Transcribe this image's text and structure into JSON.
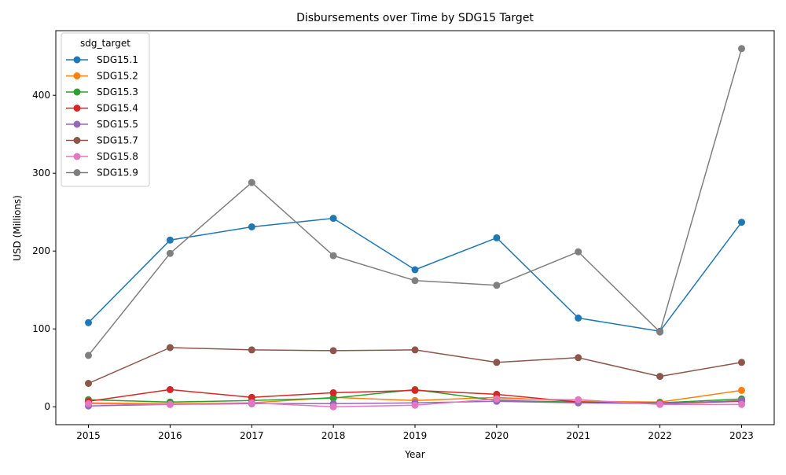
{
  "chart_data": {
    "type": "line",
    "title": "Disbursements over Time by SDG15 Target",
    "xlabel": "Year",
    "ylabel": "USD (Millions)",
    "x": [
      2015,
      2016,
      2017,
      2018,
      2019,
      2020,
      2021,
      2022,
      2023
    ],
    "xlim": [
      2014.6,
      2023.4
    ],
    "ylim": [
      -23,
      483
    ],
    "yticks": [
      0,
      100,
      200,
      300,
      400
    ],
    "grid": false,
    "legend": {
      "title": "sdg_target",
      "placement": "top-left"
    },
    "series": [
      {
        "name": "SDG15.1",
        "color": "#1f77b4",
        "values": [
          108,
          214,
          231,
          242,
          176,
          217,
          114,
          97,
          237
        ]
      },
      {
        "name": "SDG15.2",
        "color": "#ff7f0e",
        "values": [
          5,
          4,
          5,
          12,
          8,
          12,
          7,
          6,
          21
        ]
      },
      {
        "name": "SDG15.3",
        "color": "#2ca02c",
        "values": [
          9,
          6,
          8,
          11,
          22,
          8,
          6,
          5,
          10
        ]
      },
      {
        "name": "SDG15.4",
        "color": "#d62728",
        "values": [
          7,
          22,
          12,
          18,
          21,
          16,
          6,
          4,
          7
        ]
      },
      {
        "name": "SDG15.5",
        "color": "#9467bd",
        "values": [
          1,
          3,
          4,
          4,
          5,
          7,
          5,
          4,
          8
        ]
      },
      {
        "name": "SDG15.7",
        "color": "#8c564b",
        "values": [
          30,
          76,
          73,
          72,
          73,
          57,
          63,
          39,
          57
        ]
      },
      {
        "name": "SDG15.8",
        "color": "#e377c2",
        "values": [
          4,
          3,
          5,
          0,
          2,
          10,
          9,
          3,
          3
        ]
      },
      {
        "name": "SDG15.9",
        "color": "#7f7f7f",
        "values": [
          66,
          197,
          288,
          194,
          162,
          156,
          199,
          96,
          460
        ]
      }
    ]
  }
}
